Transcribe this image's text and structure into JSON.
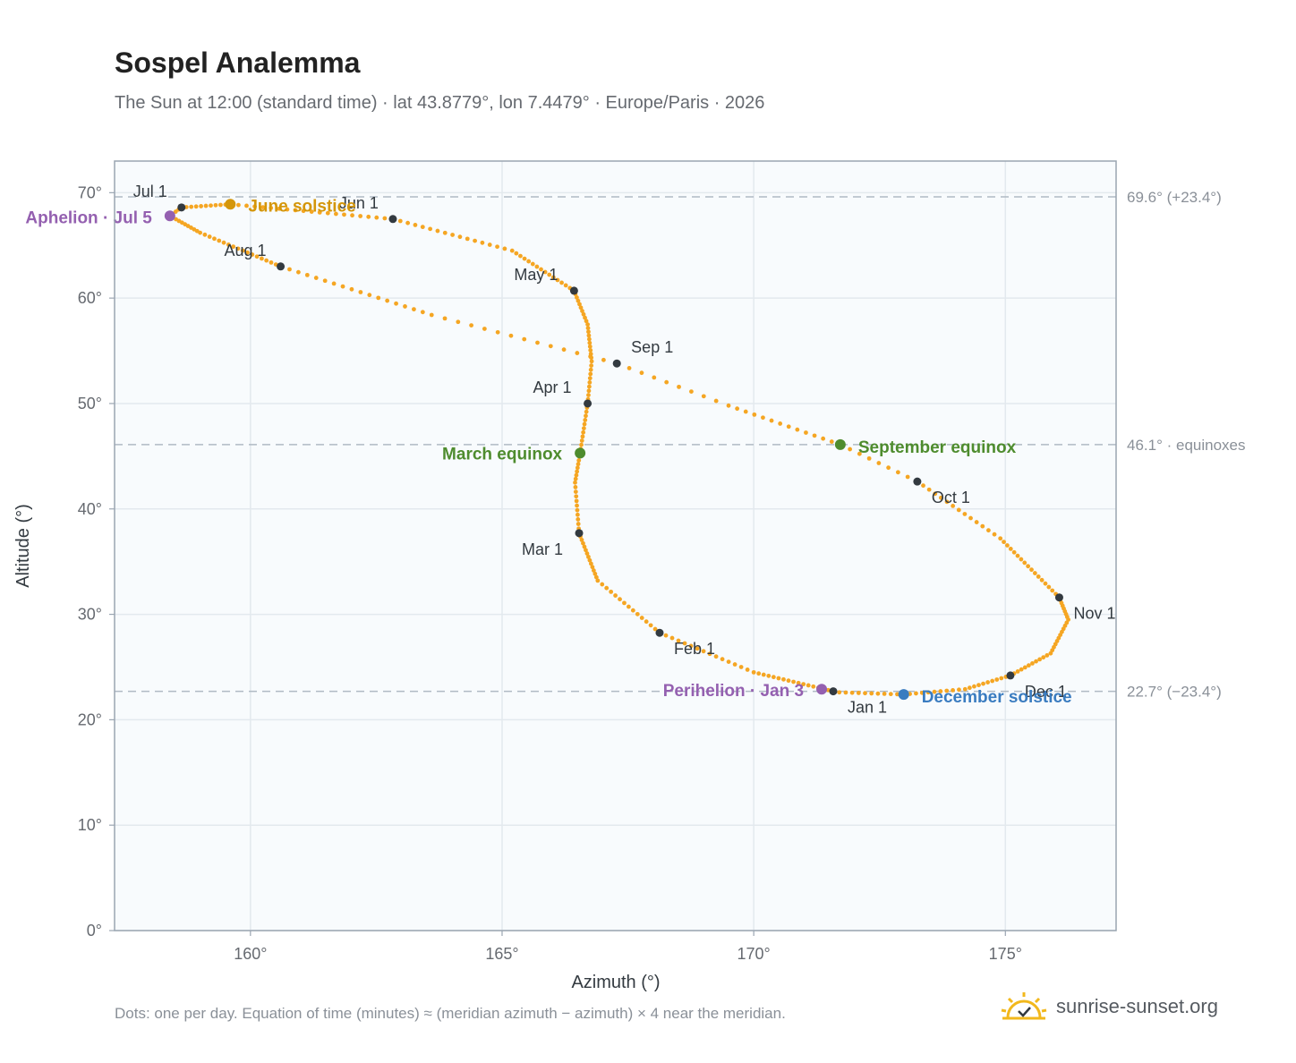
{
  "title": "Sospel Analemma",
  "subtitle": "The Sun at 12:00 (standard time) · lat 43.8779°, lon 7.4479° · Europe/Paris · 2026",
  "footnote": "Dots: one per day. Equation of time (minutes) ≈ (meridian azimuth − azimuth) × 4 near the meridian.",
  "brand": {
    "text": "sunrise-sunset.org",
    "logo_icon": "sun-check-icon"
  },
  "colors": {
    "curve": "#f5a623",
    "month_dot": "#333a40",
    "june_solstice": "#d4960a",
    "december_solstice": "#3a7cc0",
    "equinox": "#4e8c2e",
    "apsis": "#9460b0",
    "plot_bg": "#f8fbfd",
    "grid": "#e3e9ee",
    "frame": "#9aa5b1",
    "ref_line": "#b0bac4"
  },
  "chart_data": {
    "type": "scatter",
    "title": "Sospel Analemma",
    "subtitle": "The Sun at 12:00 (standard time) · lat 43.8779°, lon 7.4479° · Europe/Paris · 2026",
    "xlabel": "Azimuth (°)",
    "ylabel": "Altitude (°)",
    "xlim": [
      157.3,
      177.2
    ],
    "ylim": [
      0,
      73
    ],
    "xticks": [
      {
        "value": 160,
        "label": "160°"
      },
      {
        "value": 165,
        "label": "165°"
      },
      {
        "value": 170,
        "label": "170°"
      },
      {
        "value": 175,
        "label": "175°"
      }
    ],
    "yticks": [
      {
        "value": 0,
        "label": "0°"
      },
      {
        "value": 10,
        "label": "10°"
      },
      {
        "value": 20,
        "label": "20°"
      },
      {
        "value": 30,
        "label": "30°"
      },
      {
        "value": 40,
        "label": "40°"
      },
      {
        "value": 50,
        "label": "50°"
      },
      {
        "value": 60,
        "label": "60°"
      },
      {
        "value": 70,
        "label": "70°"
      }
    ],
    "grid": true,
    "daily_path": [
      {
        "doy": 1,
        "az": 171.58,
        "alt": 22.7
      },
      {
        "doy": 17,
        "az": 170.0,
        "alt": 24.5
      },
      {
        "doy": 32,
        "az": 168.13,
        "alt": 28.25
      },
      {
        "doy": 46,
        "az": 166.9,
        "alt": 33.2
      },
      {
        "doy": 60,
        "az": 166.53,
        "alt": 37.7
      },
      {
        "doy": 71,
        "az": 166.45,
        "alt": 42.5
      },
      {
        "doy": 79,
        "az": 166.55,
        "alt": 45.3
      },
      {
        "doy": 91,
        "az": 166.7,
        "alt": 50.0
      },
      {
        "doy": 101,
        "az": 166.78,
        "alt": 54.0
      },
      {
        "doy": 111,
        "az": 166.7,
        "alt": 57.5
      },
      {
        "doy": 121,
        "az": 166.43,
        "alt": 60.7
      },
      {
        "doy": 136,
        "az": 165.2,
        "alt": 64.5
      },
      {
        "doy": 152,
        "az": 162.83,
        "alt": 67.5
      },
      {
        "doy": 172,
        "az": 159.6,
        "alt": 68.9
      },
      {
        "doy": 182,
        "az": 158.63,
        "alt": 68.6
      },
      {
        "doy": 186,
        "az": 158.4,
        "alt": 67.8
      },
      {
        "doy": 196,
        "az": 159.0,
        "alt": 66.2
      },
      {
        "doy": 213,
        "az": 160.6,
        "alt": 63.0
      },
      {
        "doy": 230,
        "az": 163.6,
        "alt": 58.4
      },
      {
        "doy": 244,
        "az": 167.28,
        "alt": 53.8
      },
      {
        "doy": 253,
        "az": 169.5,
        "alt": 49.8
      },
      {
        "doy": 266,
        "az": 171.72,
        "alt": 46.1
      },
      {
        "doy": 274,
        "az": 173.25,
        "alt": 42.6
      },
      {
        "doy": 288,
        "az": 174.9,
        "alt": 37.2
      },
      {
        "doy": 305,
        "az": 176.07,
        "alt": 31.6
      },
      {
        "doy": 313,
        "az": 176.25,
        "alt": 29.5
      },
      {
        "doy": 324,
        "az": 175.9,
        "alt": 26.3
      },
      {
        "doy": 335,
        "az": 175.1,
        "alt": 24.2
      },
      {
        "doy": 345,
        "az": 174.2,
        "alt": 22.9
      },
      {
        "doy": 355,
        "az": 172.98,
        "alt": 22.4
      },
      {
        "doy": 365,
        "az": 171.7,
        "alt": 22.6
      }
    ],
    "month_markers": [
      {
        "label": "Jan 1",
        "az": 171.58,
        "alt": 22.7
      },
      {
        "label": "Feb 1",
        "az": 168.13,
        "alt": 28.25
      },
      {
        "label": "Mar 1",
        "az": 166.53,
        "alt": 37.7
      },
      {
        "label": "Apr 1",
        "az": 166.7,
        "alt": 50.0
      },
      {
        "label": "May 1",
        "az": 166.43,
        "alt": 60.7
      },
      {
        "label": "Jun 1",
        "az": 162.83,
        "alt": 67.5
      },
      {
        "label": "Jul 1",
        "az": 158.63,
        "alt": 68.6
      },
      {
        "label": "Aug 1",
        "az": 160.6,
        "alt": 63.0
      },
      {
        "label": "Sep 1",
        "az": 167.28,
        "alt": 53.8
      },
      {
        "label": "Oct 1",
        "az": 173.25,
        "alt": 42.6
      },
      {
        "label": "Nov 1",
        "az": 176.07,
        "alt": 31.6
      },
      {
        "label": "Dec 1",
        "az": 175.1,
        "alt": 24.2
      }
    ],
    "events": [
      {
        "label": "June solstice",
        "az": 159.6,
        "alt": 68.9
      },
      {
        "label": "December solstice",
        "az": 172.98,
        "alt": 22.4
      },
      {
        "label": "March equinox",
        "az": 166.55,
        "alt": 45.3
      },
      {
        "label": "September equinox",
        "az": 171.72,
        "alt": 46.1
      },
      {
        "label": "Aphelion · Jul 5",
        "az": 158.4,
        "alt": 67.8
      },
      {
        "label": "Perihelion · Jan 3",
        "az": 171.35,
        "alt": 22.9
      }
    ],
    "reference_lines": [
      {
        "alt": 69.6,
        "label": "69.6° (+23.4°)"
      },
      {
        "alt": 46.1,
        "label": "46.1° · equinoxes"
      },
      {
        "alt": 22.7,
        "label": "22.7° (−23.4°)"
      }
    ]
  }
}
